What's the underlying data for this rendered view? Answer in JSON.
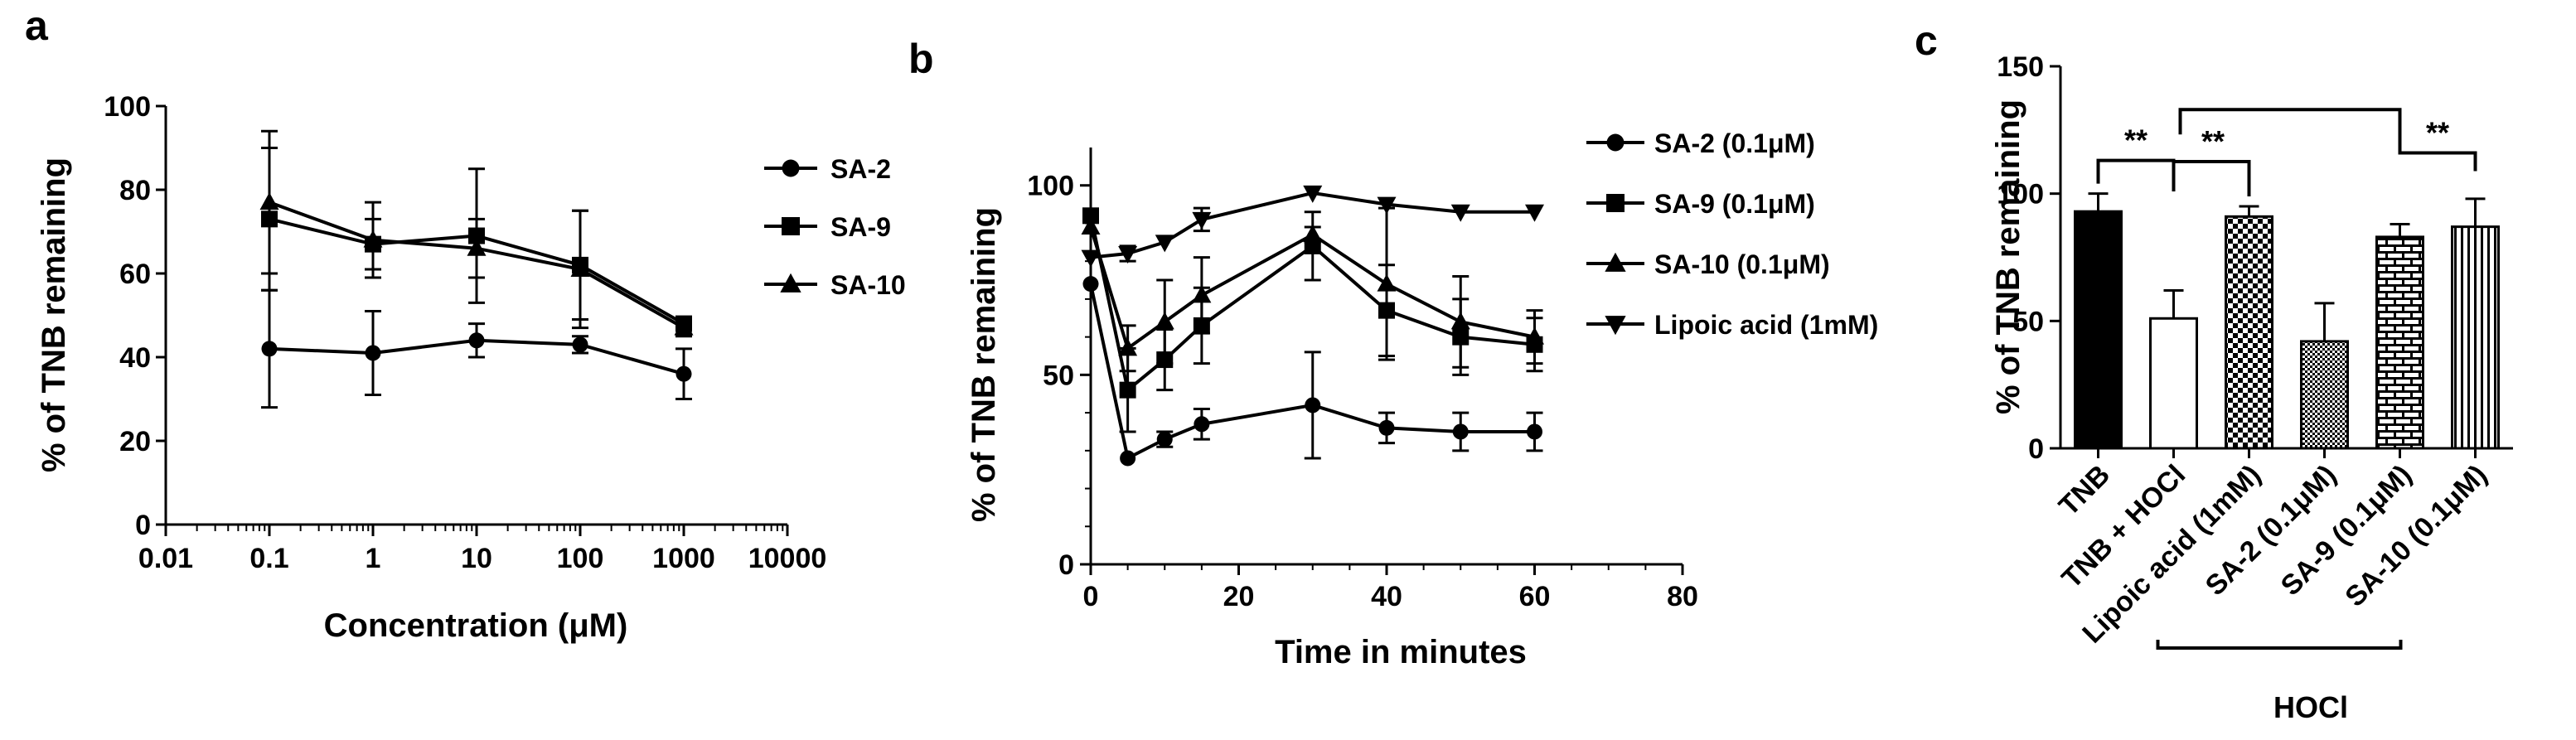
{
  "chart_data": [
    {
      "panel": "a",
      "type": "line",
      "xscale": "log",
      "xlabel": "Concentration (μM)",
      "ylabel": "% of TNB remaining",
      "xlim": [
        0.01,
        10000
      ],
      "ylim": [
        0,
        100
      ],
      "x_ticks": [
        0.01,
        0.1,
        1,
        10,
        100,
        1000,
        10000
      ],
      "x_tick_labels": [
        "0.01",
        "0.1",
        "1",
        "10",
        "100",
        "1000",
        "10000"
      ],
      "y_ticks": [
        0,
        20,
        40,
        60,
        80,
        100
      ],
      "y_tick_labels": [
        "0",
        "20",
        "40",
        "60",
        "80",
        "100"
      ],
      "legend_position": "right",
      "series": [
        {
          "name": "SA-2",
          "marker": "circle",
          "x": [
            0.1,
            1,
            10,
            100,
            1000
          ],
          "values": [
            42,
            41,
            44,
            43,
            36
          ],
          "errors": [
            14,
            10,
            4,
            2,
            6
          ]
        },
        {
          "name": "SA-9",
          "marker": "square",
          "x": [
            0.1,
            1,
            10,
            100,
            1000
          ],
          "values": [
            73,
            67,
            69,
            62,
            48
          ],
          "errors": [
            17,
            6,
            16,
            13,
            1
          ]
        },
        {
          "name": "SA-10",
          "marker": "triangle",
          "x": [
            0.1,
            1,
            10,
            100,
            1000
          ],
          "values": [
            77,
            68,
            66,
            61,
            47
          ],
          "errors": [
            17,
            9,
            7,
            14,
            2
          ]
        }
      ]
    },
    {
      "panel": "b",
      "type": "line",
      "xlabel": "Time in minutes",
      "ylabel": "% of TNB remaining",
      "xlim": [
        0,
        80
      ],
      "ylim": [
        0,
        110
      ],
      "x_ticks": [
        0,
        20,
        40,
        60,
        80
      ],
      "x_tick_labels": [
        "0",
        "20",
        "40",
        "60",
        "80"
      ],
      "y_ticks": [
        0,
        50,
        100
      ],
      "y_tick_labels": [
        "0",
        "50",
        "100"
      ],
      "legend_position": "right",
      "series": [
        {
          "name": "SA-2 (0.1μM)",
          "marker": "circle",
          "x": [
            0,
            5,
            10,
            15,
            30,
            40,
            50,
            60
          ],
          "values": [
            74,
            28,
            33,
            37,
            42,
            36,
            35,
            35
          ],
          "errors": [
            0,
            0,
            2,
            4,
            14,
            4,
            5,
            5
          ]
        },
        {
          "name": "SA-9 (0.1μM)",
          "marker": "square",
          "x": [
            0,
            5,
            10,
            15,
            30,
            40,
            50,
            60
          ],
          "values": [
            92,
            46,
            54,
            63,
            84,
            67,
            60,
            58
          ],
          "errors": [
            0,
            11,
            8,
            10,
            9,
            12,
            10,
            7
          ]
        },
        {
          "name": "SA-10 (0.1μM)",
          "marker": "triangle",
          "x": [
            0,
            5,
            10,
            15,
            30,
            40,
            50,
            60
          ],
          "values": [
            89,
            57,
            64,
            71,
            87,
            74,
            64,
            60
          ],
          "errors": [
            0,
            6,
            11,
            10,
            2,
            20,
            12,
            7
          ]
        },
        {
          "name": "Lipoic acid (1mM)",
          "marker": "triangle-down",
          "x": [
            0,
            5,
            10,
            15,
            30,
            40,
            50,
            60
          ],
          "values": [
            81,
            82,
            85,
            91,
            98,
            95,
            93,
            93
          ],
          "errors": [
            0,
            2,
            0,
            3,
            0,
            0,
            0,
            0
          ]
        }
      ]
    },
    {
      "panel": "c",
      "type": "bar",
      "ylabel": "% of TNB remaining",
      "ylim": [
        0,
        150
      ],
      "y_ticks": [
        0,
        50,
        100,
        150
      ],
      "y_tick_labels": [
        "0",
        "50",
        "100",
        "150"
      ],
      "categories": [
        "TNB",
        "TNB + HOCl",
        "Lipoic acid (1mM)",
        "SA-2 (0.1μM)",
        "SA-9 (0.1μM)",
        "SA-10 (0.1μM)"
      ],
      "values": [
        93,
        51,
        91,
        42,
        83,
        87
      ],
      "errors": [
        7,
        11,
        4,
        15,
        5,
        11
      ],
      "fills": [
        "solid-black",
        "white",
        "checker",
        "dense-checker",
        "brick",
        "vertical-lines"
      ],
      "group_label": "HOCl",
      "group_categories": [
        "Lipoic acid (1mM)",
        "SA-2 (0.1μM)",
        "SA-9 (0.1μM)",
        "SA-10 (0.1μM)"
      ],
      "significance": [
        {
          "from": "TNB",
          "to": "TNB + HOCl",
          "label": "**"
        },
        {
          "from": "TNB + HOCl",
          "to": "Lipoic acid (1mM)",
          "label": "**"
        },
        {
          "from": "TNB + HOCl",
          "to": "SA-10 (0.1μM)",
          "label": "**"
        }
      ]
    }
  ]
}
